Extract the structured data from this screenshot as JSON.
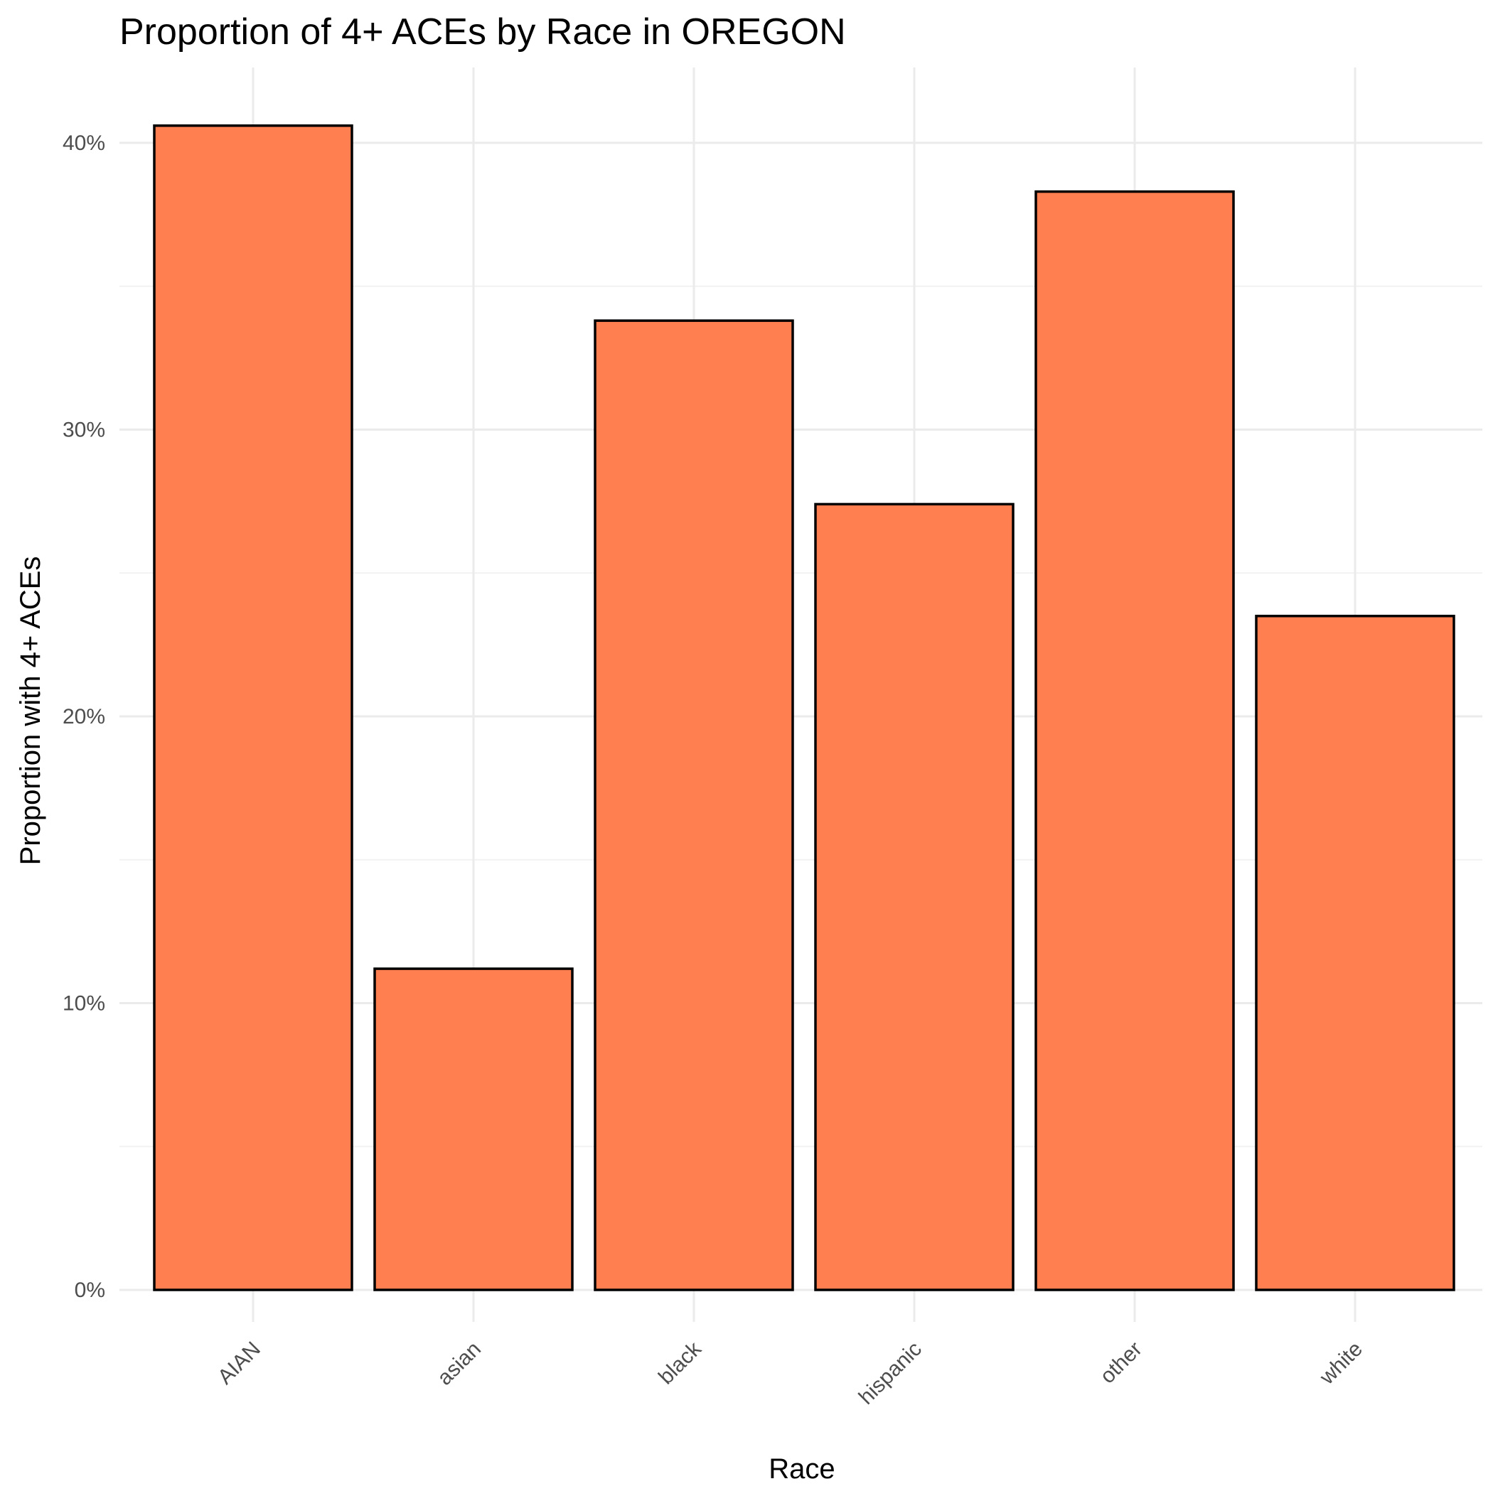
{
  "colors": {
    "bar_fill": "#FF7F50",
    "bar_outline": "#000000",
    "grid_major": "#EBEBEB",
    "grid_minor": "#F2F2F2",
    "background": "#FFFFFF"
  },
  "chart_data": {
    "type": "bar",
    "title": "Proportion of 4+ ACEs by Race in OREGON",
    "xlabel": "Race",
    "ylabel": "Proportion with 4+ ACEs",
    "categories": [
      "AIAN",
      "asian",
      "black",
      "hispanic",
      "other",
      "white"
    ],
    "values": [
      0.406,
      0.112,
      0.338,
      0.274,
      0.383,
      0.235
    ],
    "ylim": [
      0,
      0.4
    ],
    "yticks": [
      0,
      0.1,
      0.2,
      0.3,
      0.4
    ],
    "ytick_labels": [
      "0%",
      "10%",
      "20%",
      "30%",
      "40%"
    ],
    "grid": true,
    "legend": "none",
    "x_tick_rotation_deg": 45
  }
}
